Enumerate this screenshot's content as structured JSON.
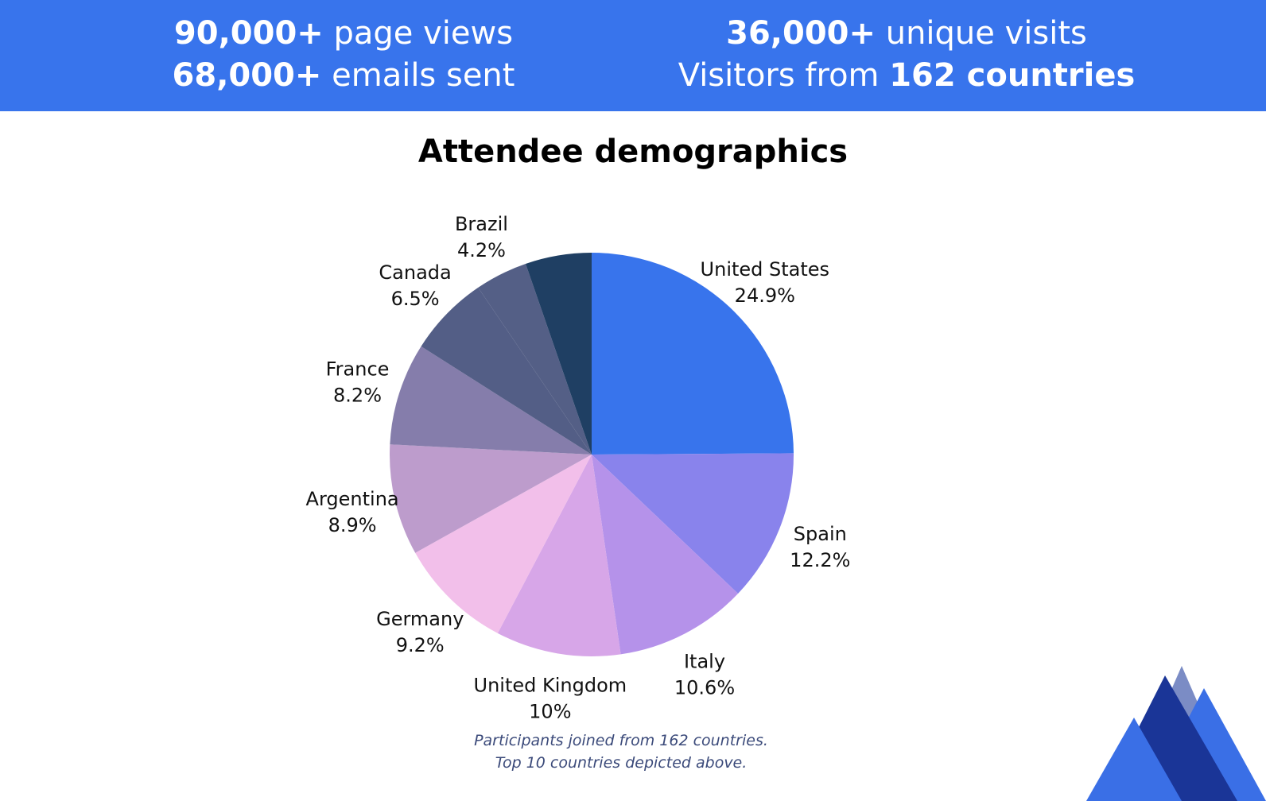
{
  "banner": {
    "stats_left": [
      {
        "value": "90,000+",
        "label": " page views"
      },
      {
        "value": "68,000+",
        "label": " emails sent"
      }
    ],
    "stats_right": [
      {
        "value": "36,000+",
        "label": " unique visits",
        "value_first": true
      },
      {
        "prefix": "Visitors from ",
        "value": "162 countries",
        "value_first": false
      }
    ]
  },
  "colors": {
    "banner": "#3874ec",
    "logo_front": "#3a6fe6",
    "logo_mid": "#1a3597",
    "logo_back": "#7b8cc5"
  },
  "logo_icon": "mountain-logo-icon",
  "chart_data": {
    "type": "pie",
    "title": "Attendee demographics",
    "unit": "%",
    "slices": [
      {
        "label": "United States",
        "value": 24.9,
        "display": "24.9%",
        "color": "#3874ec"
      },
      {
        "label": "Spain",
        "value": 12.2,
        "display": "12.2%",
        "color": "#8983ec"
      },
      {
        "label": "Italy",
        "value": 10.6,
        "display": "10.6%",
        "color": "#b592ea"
      },
      {
        "label": "United Kingdom",
        "value": 10,
        "display": "10%",
        "color": "#d7a6e8"
      },
      {
        "label": "Germany",
        "value": 9.2,
        "display": "9.2%",
        "color": "#f2bfea"
      },
      {
        "label": "Argentina",
        "value": 8.9,
        "display": "8.9%",
        "color": "#bd9ccc"
      },
      {
        "label": "France",
        "value": 8.2,
        "display": "8.2%",
        "color": "#857dab"
      },
      {
        "label": "Canada",
        "value": 6.5,
        "display": "6.5%",
        "color": "#535e86"
      },
      {
        "label": "Brazil",
        "value": 4.2,
        "display": "4.2%",
        "color": "#545f86"
      },
      {
        "label": "",
        "value": 5.3,
        "display": "",
        "color": "#1f3f63"
      }
    ]
  },
  "caption": {
    "line1": "Participants joined from 162 countries.",
    "line2": "Top 10 countries depicted above."
  }
}
